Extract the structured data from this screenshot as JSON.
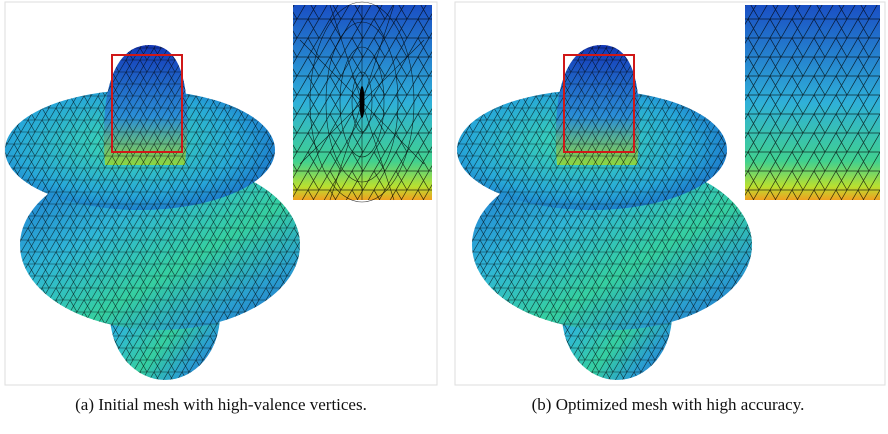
{
  "figure": {
    "panels": [
      {
        "caption": "(a) Initial mesh with high-valence vertices."
      },
      {
        "caption": "(b) Optimized mesh with high accuracy."
      }
    ]
  }
}
